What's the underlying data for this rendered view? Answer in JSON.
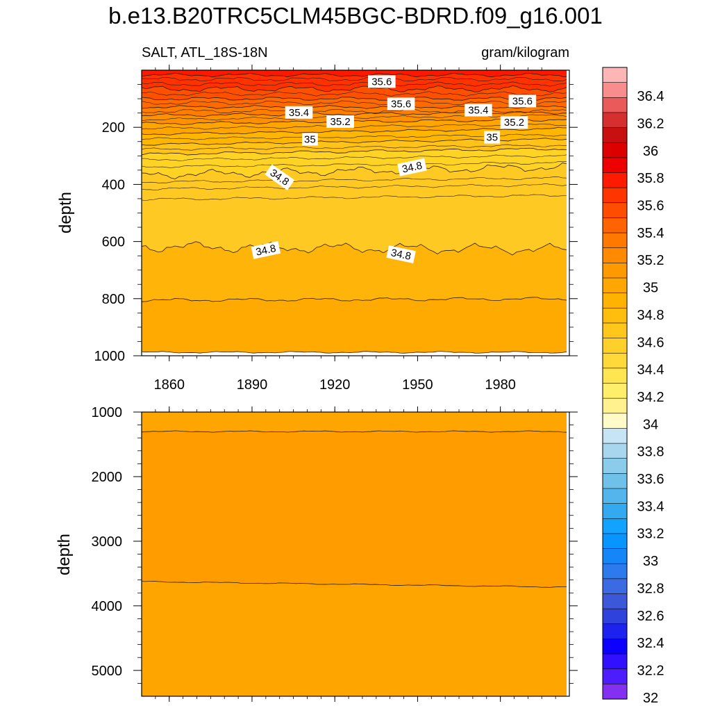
{
  "title": "b.e13.B20TRC5CLM45BGC-BDRD.f09_g16.001",
  "subtitle_left": "SALT, ATL_18S-18N",
  "subtitle_right": "gram/kilogram",
  "chart_data": [
    {
      "type": "heatmap",
      "panel": "upper",
      "xlabel": "",
      "ylabel": "depth",
      "xlim": [
        1850,
        2005
      ],
      "ylim": [
        0,
        1000
      ],
      "y_reversed": true,
      "x_tick_labels": [
        "1860",
        "1890",
        "1920",
        "1950",
        "1980"
      ],
      "x_ticks": [
        1860,
        1890,
        1920,
        1950,
        1980
      ],
      "y_tick_labels": [
        "200",
        "400",
        "600",
        "800",
        "1000"
      ],
      "y_ticks": [
        200,
        400,
        600,
        800,
        1000
      ],
      "contour_labels": [
        {
          "text": "35.6",
          "x": 1937,
          "y": 40,
          "angle": 0
        },
        {
          "text": "35.4",
          "x": 1907,
          "y": 148,
          "angle": 0
        },
        {
          "text": "35.6",
          "x": 1944,
          "y": 118,
          "angle": 0
        },
        {
          "text": "35.4",
          "x": 1972,
          "y": 140,
          "angle": 0
        },
        {
          "text": "35.6",
          "x": 1988,
          "y": 108,
          "angle": 0
        },
        {
          "text": "35.2",
          "x": 1922,
          "y": 180,
          "angle": 0
        },
        {
          "text": "35.2",
          "x": 1985,
          "y": 183,
          "angle": 0
        },
        {
          "text": "35",
          "x": 1911,
          "y": 242,
          "angle": 0
        },
        {
          "text": "35",
          "x": 1977,
          "y": 235,
          "angle": 0
        },
        {
          "text": "34.8",
          "x": 1900,
          "y": 375,
          "angle": 35
        },
        {
          "text": "34.8",
          "x": 1948,
          "y": 340,
          "angle": -12
        },
        {
          "text": "34.8",
          "x": 1895,
          "y": 630,
          "angle": -12
        },
        {
          "text": "34.8",
          "x": 1944,
          "y": 645,
          "angle": 12
        }
      ]
    },
    {
      "type": "heatmap",
      "panel": "lower",
      "xlabel": "",
      "ylabel": "depth",
      "xlim": [
        1850,
        2005
      ],
      "ylim": [
        1000,
        5400
      ],
      "y_reversed": true,
      "x_ticks": [
        1860,
        1890,
        1920,
        1950,
        1980
      ],
      "y_tick_labels": [
        "1000",
        "2000",
        "3000",
        "4000",
        "5000"
      ],
      "y_ticks": [
        1000,
        2000,
        3000,
        4000,
        5000
      ]
    }
  ],
  "colorbar": {
    "labels": [
      "36.4",
      "36.2",
      "36",
      "35.8",
      "35.6",
      "35.4",
      "35.2",
      "35",
      "34.8",
      "34.6",
      "34.4",
      "34.2",
      "34",
      "33.8",
      "33.6",
      "33.4",
      "33.2",
      "33",
      "32.8",
      "32.6",
      "32.4",
      "32.2",
      "32"
    ],
    "colors": [
      "#fdb6b6",
      "#f98c8c",
      "#eb5a5a",
      "#d62f2f",
      "#c81010",
      "#dc0000",
      "#ee0000",
      "#ff1a00",
      "#ff3500",
      "#ff4d00",
      "#ff6400",
      "#ff7800",
      "#ff8a00",
      "#ff9900",
      "#ffa600",
      "#ffb300",
      "#ffbd0d",
      "#ffc61c",
      "#ffcf2a",
      "#ffd93a",
      "#ffe54f",
      "#ffee6a",
      "#fff18e",
      "#fffac8",
      "#c6e4f3",
      "#a7d6ee",
      "#8ccceb",
      "#70c1ea",
      "#52b6ed",
      "#33aaf0",
      "#12a3ff",
      "#0796ff",
      "#1486f8",
      "#2d7aee",
      "#3c6ae2",
      "#3c58d8",
      "#2f43dc",
      "#1e22ee",
      "#0c00ff",
      "#3110ff",
      "#4d1cff",
      "#8430f2"
    ]
  },
  "colors": {
    "upper_bands": [
      "#ff1800",
      "#ff3200",
      "#ff5000",
      "#ff6a00",
      "#ff7e00",
      "#ff9000",
      "#ffa500",
      "#ffb600",
      "#ffc217",
      "#ffd324",
      "#ffc924",
      "#ffb40a",
      "#ffaa00"
    ],
    "lower_bands": [
      "#ffa500",
      "#ff9c00",
      "#ffa500"
    ],
    "line": "#2b1a00"
  }
}
